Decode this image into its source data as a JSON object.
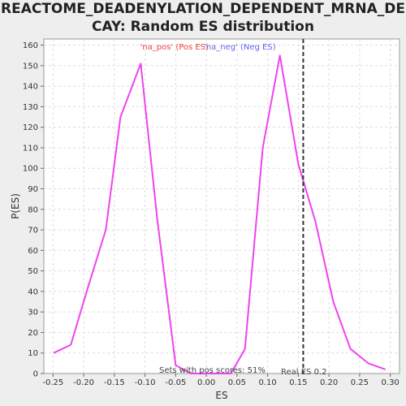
{
  "chart_data": {
    "type": "line",
    "title_lines": [
      "REACTOME_DEADENYLATION_DEPENDENT_MRNA_DE",
      "CAY: Random ES distribution"
    ],
    "xlabel": "ES",
    "ylabel": "P(ES)",
    "xlim": [
      -0.265,
      0.315
    ],
    "ylim": [
      0,
      163
    ],
    "x_ticks": [
      "-0.25",
      "-0.20",
      "-0.15",
      "-0.10",
      "-0.05",
      "0.00",
      "0.05",
      "0.10",
      "0.15",
      "0.20",
      "0.25",
      "0.30"
    ],
    "x_tick_values": [
      -0.25,
      -0.2,
      -0.15,
      -0.1,
      -0.05,
      0.0,
      0.05,
      0.1,
      0.15,
      0.2,
      0.25,
      0.3
    ],
    "y_ticks": [
      "0",
      "10",
      "20",
      "30",
      "40",
      "50",
      "60",
      "70",
      "80",
      "90",
      "100",
      "110",
      "120",
      "130",
      "140",
      "150",
      "160"
    ],
    "y_tick_values": [
      0,
      10,
      20,
      30,
      40,
      50,
      60,
      70,
      80,
      90,
      100,
      110,
      120,
      130,
      140,
      150,
      160
    ],
    "grid": true,
    "series": [
      {
        "color": "#ee44ee",
        "x": [
          -0.249,
          -0.221,
          -0.192,
          -0.164,
          -0.14,
          -0.107,
          -0.08,
          -0.05,
          -0.025,
          0.0,
          0.04,
          0.063,
          0.092,
          0.12,
          0.15,
          0.178,
          0.207,
          0.235,
          0.264,
          0.292
        ],
        "y": [
          10,
          14,
          43,
          70,
          125,
          151,
          75,
          4,
          0,
          0,
          0,
          12,
          110,
          155,
          102,
          74,
          35,
          12,
          5,
          2
        ]
      }
    ],
    "legend": {
      "pos_label": "'na_pos' (Pos ES)",
      "neg_label": "'na_neg' (Neg ES)",
      "pos_color": "#ee4444",
      "neg_color": "#6666ee",
      "placement": "top-center"
    },
    "annotations": {
      "real_es_x": 0.158,
      "real_es_label": "Real ES 0.2",
      "pos_scores_label": "Sets with pos scores: 51%"
    }
  }
}
